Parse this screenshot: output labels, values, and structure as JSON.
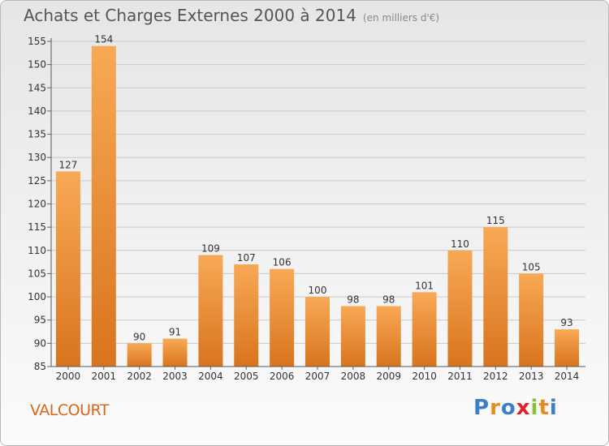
{
  "header": {
    "title": "Achats et Charges Externes 2000 à 2014",
    "subtitle": "(en milliers d'€)"
  },
  "footer": {
    "town": "VALCOURT",
    "logo": "Proxiti"
  },
  "colors": {
    "bar_top": "#f8a955",
    "bar_bottom": "#d9741e",
    "logo_letters": [
      "#3d7fc4",
      "#e58b1f",
      "#3d7fc4",
      "#e2202a",
      "#8bbf3a",
      "#e58b1f",
      "#3d7fc4"
    ]
  },
  "chart_data": {
    "type": "bar",
    "categories": [
      "2000",
      "2001",
      "2002",
      "2003",
      "2004",
      "2005",
      "2006",
      "2007",
      "2008",
      "2009",
      "2010",
      "2011",
      "2012",
      "2013",
      "2014"
    ],
    "values": [
      127,
      154,
      90,
      91,
      109,
      107,
      106,
      100,
      98,
      98,
      101,
      110,
      115,
      105,
      93
    ],
    "ylim": [
      85,
      155
    ],
    "yticks": [
      85,
      90,
      95,
      100,
      105,
      110,
      115,
      120,
      125,
      130,
      135,
      140,
      145,
      150,
      155
    ],
    "grid": true,
    "data_labels": true
  }
}
